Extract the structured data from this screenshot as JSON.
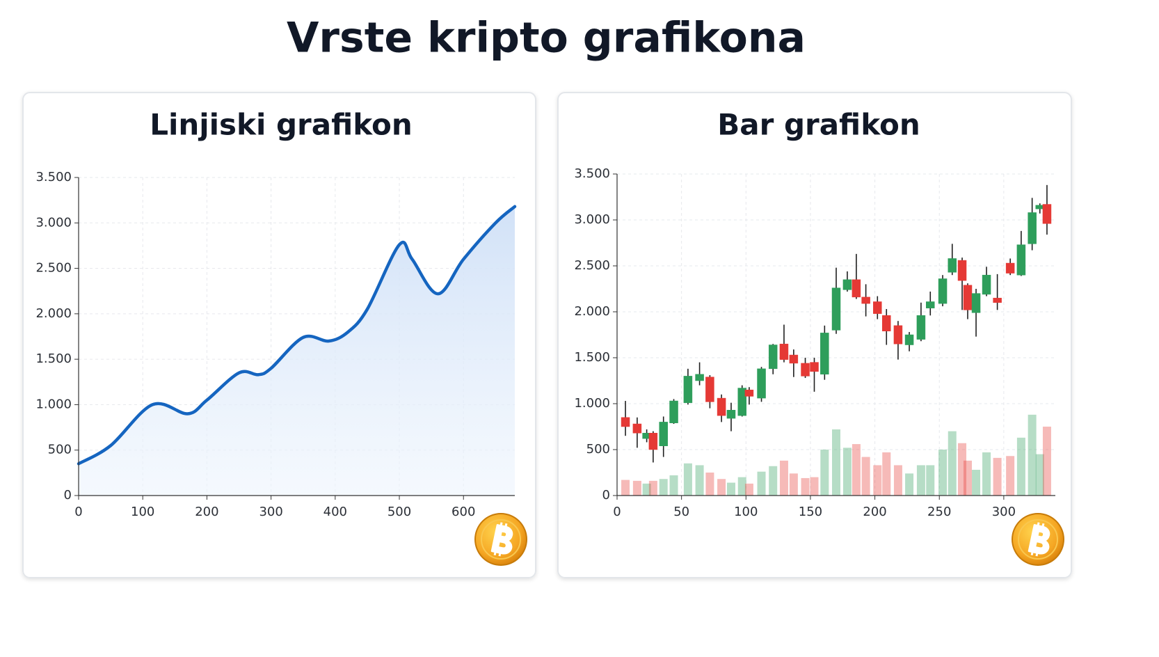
{
  "title": "Vrste kripto grafikona",
  "chart_data": [
    {
      "type": "area",
      "title": "Linjiski grafikon",
      "color": "#1565c0",
      "fill_color": "#cfe0f7",
      "grid": true,
      "x": [
        0,
        50,
        115,
        170,
        200,
        250,
        280,
        300,
        350,
        390,
        420,
        450,
        500,
        520,
        560,
        600,
        650,
        680
      ],
      "values": [
        350,
        550,
        1000,
        900,
        1050,
        1350,
        1330,
        1400,
        1740,
        1700,
        1800,
        2050,
        2760,
        2600,
        2220,
        2600,
        3000,
        3180
      ],
      "xlim": [
        0,
        680
      ],
      "ylim": [
        0,
        3500
      ],
      "xticks": [
        0,
        100,
        200,
        300,
        400,
        500,
        600
      ],
      "yticks": [
        0,
        500,
        {
          "value": 1000,
          "label": "1.000"
        },
        {
          "value": 1500,
          "label": "1.500"
        },
        {
          "value": 2000,
          "label": "2.000"
        },
        {
          "value": 2500,
          "label": "2.500"
        },
        {
          "value": 3000,
          "label": "3.000"
        },
        {
          "value": 3500,
          "label": "3.500"
        }
      ]
    },
    {
      "type": "candlestick",
      "title": "Bar grafikon",
      "up_color": "#2e9e5b",
      "down_color": "#e53935",
      "grid": true,
      "x": [
        6.5,
        15.6,
        23,
        28,
        36,
        44,
        55,
        64,
        72,
        81,
        88.5,
        97,
        102.5,
        112,
        121,
        129.5,
        137,
        146,
        153,
        161,
        170,
        178.6,
        185.6,
        193,
        202,
        209,
        218,
        226.7,
        235.8,
        243,
        252.6,
        260,
        267.7,
        272,
        278.5,
        286.6,
        295,
        305,
        313.5,
        322,
        328,
        333.5
      ],
      "open": [
        850,
        780,
        620,
        680,
        540,
        790,
        1010,
        1250,
        1290,
        1060,
        840,
        870,
        1150,
        1060,
        1380,
        1650,
        1530,
        1440,
        1450,
        1320,
        1800,
        2240,
        2350,
        2160,
        2110,
        1960,
        1850,
        1640,
        1700,
        2040,
        2090,
        2430,
        2560,
        2290,
        1990,
        2190,
        2150,
        2530,
        2400,
        2740,
        3120,
        3170
      ],
      "high": [
        1030,
        850,
        720,
        700,
        860,
        1050,
        1380,
        1450,
        1310,
        1100,
        1010,
        1200,
        1180,
        1400,
        1650,
        1860,
        1590,
        1500,
        1500,
        1850,
        2480,
        2440,
        2630,
        2300,
        2170,
        2030,
        1900,
        1780,
        2100,
        2220,
        2400,
        2740,
        2590,
        2310,
        2250,
        2490,
        2410,
        2580,
        2880,
        3240,
        3180,
        3380
      ],
      "low": [
        650,
        520,
        580,
        360,
        420,
        780,
        990,
        1200,
        950,
        800,
        700,
        860,
        990,
        1020,
        1320,
        1450,
        1290,
        1280,
        1130,
        1260,
        1760,
        2220,
        2140,
        1950,
        1920,
        1640,
        1480,
        1570,
        1680,
        1960,
        2060,
        2400,
        2020,
        1920,
        1730,
        2170,
        2020,
        2400,
        2390,
        2670,
        3070,
        2840
      ],
      "close": [
        750,
        680,
        680,
        500,
        800,
        1030,
        1300,
        1320,
        1020,
        870,
        930,
        1170,
        1080,
        1380,
        1640,
        1480,
        1440,
        1300,
        1350,
        1770,
        2260,
        2350,
        2160,
        2090,
        1980,
        1790,
        1650,
        1750,
        1960,
        2110,
        2360,
        2580,
        2340,
        2020,
        2200,
        2400,
        2100,
        2420,
        2730,
        3080,
        3160,
        2960
      ],
      "volume": [
        170,
        160,
        130,
        160,
        180,
        220,
        350,
        330,
        250,
        180,
        140,
        200,
        130,
        260,
        320,
        380,
        240,
        190,
        200,
        500,
        720,
        520,
        560,
        420,
        330,
        470,
        330,
        240,
        330,
        330,
        500,
        700,
        570,
        380,
        280,
        470,
        410,
        430,
        630,
        880,
        450,
        750
      ],
      "xlim": [
        0,
        340
      ],
      "ylim": [
        0,
        3500
      ],
      "xticks": [
        0,
        50,
        100,
        150,
        200,
        250,
        300
      ],
      "yticks": [
        0,
        500,
        {
          "value": 1000,
          "label": "1.000"
        },
        {
          "value": 1500,
          "label": "1.500"
        },
        {
          "value": 2000,
          "label": "2.000"
        },
        {
          "value": 2500,
          "label": "2.500"
        },
        {
          "value": 3000,
          "label": "3.000"
        },
        {
          "value": 3500,
          "label": "3.500"
        }
      ]
    }
  ]
}
